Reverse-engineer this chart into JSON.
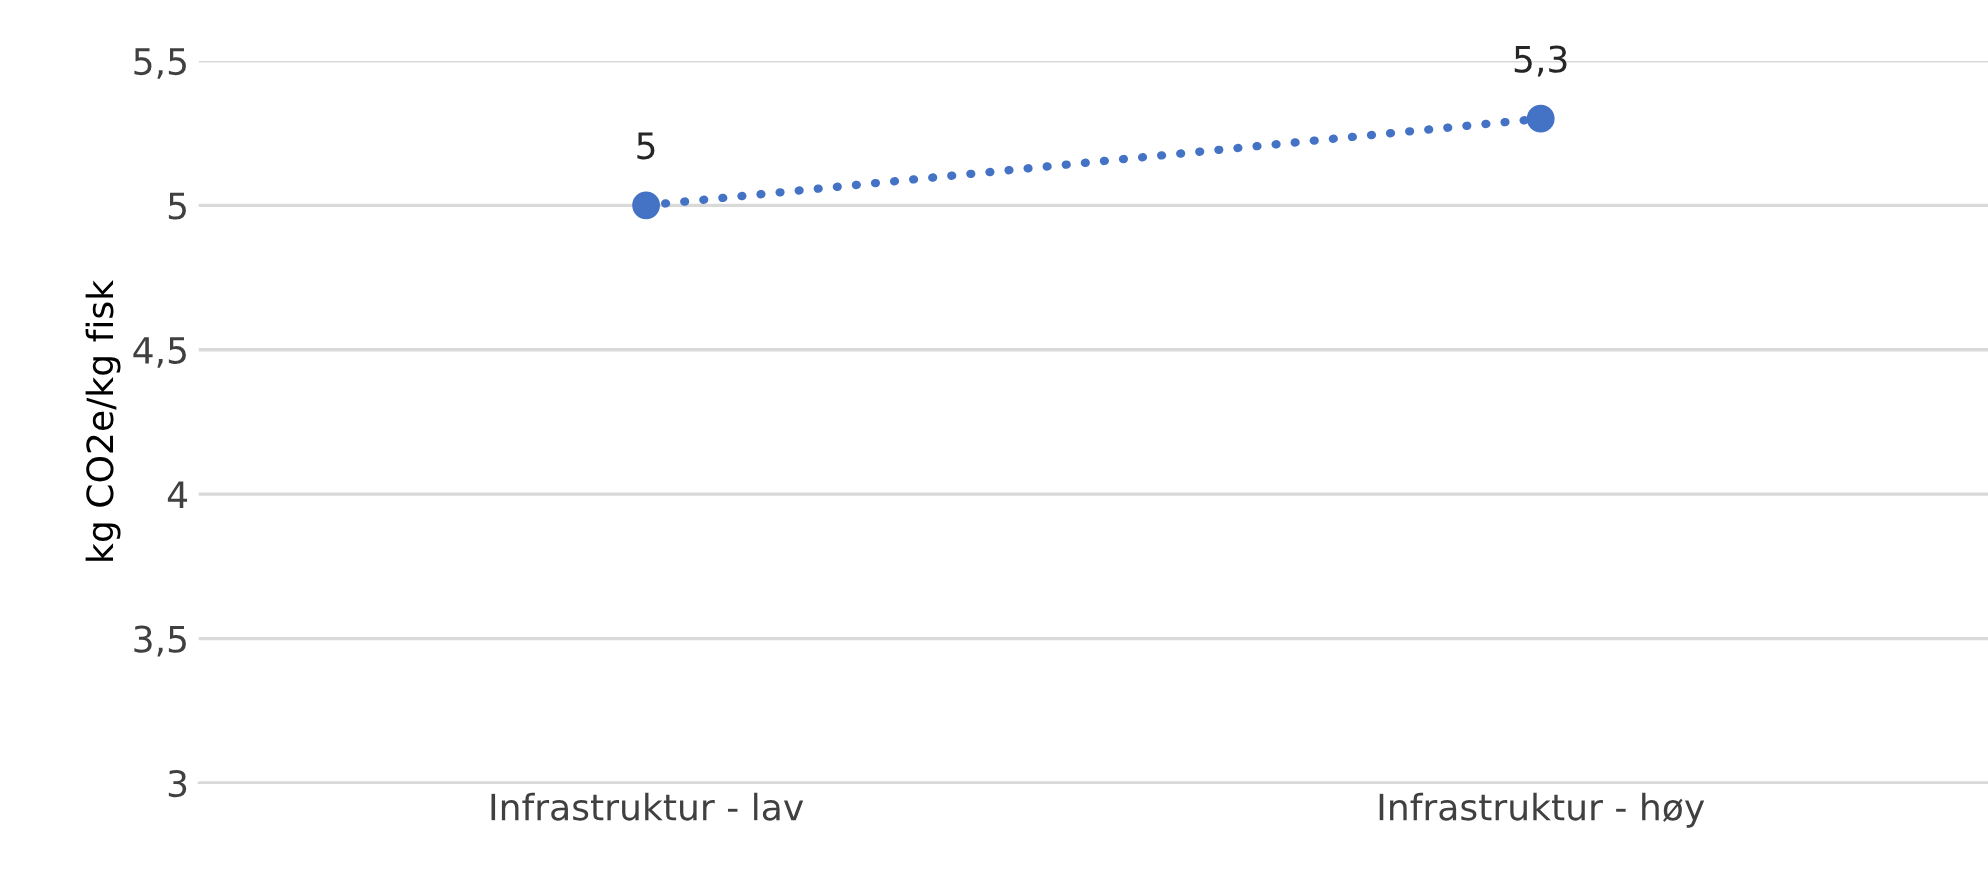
{
  "chart_data": {
    "type": "line",
    "ylabel": "kg CO2e/kg fisk",
    "categories": [
      "Infrastruktur - lav",
      "Infrastruktur - høy"
    ],
    "series": [
      {
        "color": "#4472c4",
        "values": [
          5,
          5.3
        ],
        "value_labels": [
          "5",
          "5,3"
        ]
      }
    ],
    "ylim": [
      3,
      5.5
    ],
    "yticks": [
      3,
      {
        "value": 3.5,
        "label": "3,5"
      },
      4,
      {
        "value": 4.5,
        "label": "4,5"
      },
      5,
      {
        "value": 5.5,
        "label": "5,5"
      }
    ],
    "grid": "y",
    "marker": "circle",
    "line_style": "dotted"
  }
}
